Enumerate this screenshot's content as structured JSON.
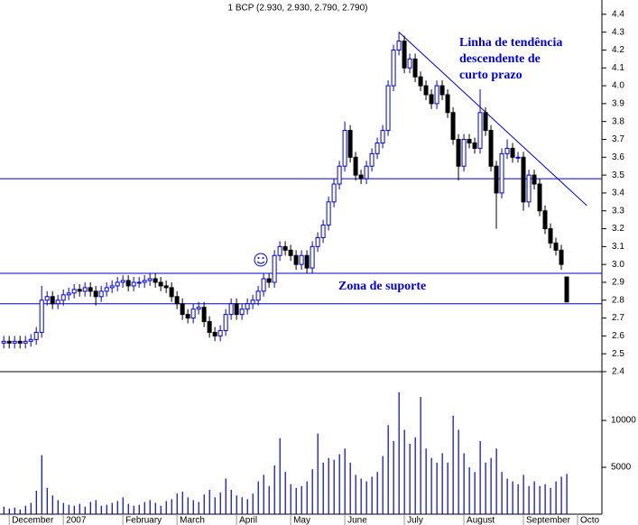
{
  "chart_data": {
    "type": "candlestick",
    "title": "1 BCP (2.930, 2.930, 2.790, 2.790)",
    "annotations": [
      "Linha de tendência",
      "descendente de",
      "curto prazo",
      "Zona de suporte"
    ],
    "categories": [
      null,
      null,
      null,
      null,
      null,
      null,
      null,
      null,
      null,
      null,
      null,
      null,
      null,
      null,
      null,
      null,
      null,
      null,
      null,
      null,
      null,
      null,
      null,
      null,
      null,
      null,
      null,
      null,
      null,
      null,
      null,
      null,
      null,
      null,
      null,
      null,
      null,
      null,
      null,
      null,
      null,
      null,
      null,
      null,
      null,
      null,
      null,
      null,
      null,
      null,
      null,
      null,
      null,
      null,
      null,
      null,
      null,
      null,
      null,
      null,
      null,
      null,
      null,
      null,
      null,
      null,
      null,
      null,
      null,
      null,
      null,
      null,
      null,
      null,
      null,
      null,
      null,
      null,
      null,
      null,
      null,
      null,
      null,
      null,
      null,
      null,
      null,
      null,
      null,
      null,
      null,
      null,
      null,
      null,
      null,
      null,
      null,
      null,
      null,
      null,
      null,
      null,
      null,
      null,
      null
    ],
    "open": [
      2.56,
      2.57,
      2.56,
      2.57,
      2.56,
      2.57,
      2.58,
      2.62,
      2.8,
      2.82,
      2.78,
      2.8,
      2.83,
      2.84,
      2.86,
      2.85,
      2.87,
      2.85,
      2.82,
      2.85,
      2.87,
      2.88,
      2.9,
      2.91,
      2.88,
      2.9,
      2.9,
      2.91,
      2.92,
      2.9,
      2.88,
      2.87,
      2.82,
      2.78,
      2.72,
      2.7,
      2.75,
      2.76,
      2.68,
      2.62,
      2.6,
      2.63,
      2.72,
      2.78,
      2.72,
      2.75,
      2.78,
      2.8,
      2.85,
      2.92,
      2.9,
      3.05,
      3.1,
      3.08,
      3.05,
      3.0,
      3.05,
      2.98,
      3.1,
      3.15,
      3.22,
      3.35,
      3.45,
      3.55,
      3.75,
      3.6,
      3.5,
      3.48,
      3.55,
      3.62,
      3.68,
      3.75,
      4.0,
      4.2,
      4.25,
      4.1,
      4.15,
      4.05,
      4.0,
      3.95,
      3.9,
      4.0,
      3.95,
      3.85,
      3.7,
      3.55,
      3.7,
      3.68,
      3.65,
      3.85,
      3.75,
      3.55,
      3.4,
      3.62,
      3.65,
      3.6,
      3.6,
      3.35,
      3.5,
      3.45,
      3.3,
      3.2,
      3.12,
      3.08,
      2.93
    ],
    "high": [
      2.6,
      2.6,
      2.6,
      2.6,
      2.6,
      2.61,
      2.65,
      2.88,
      2.85,
      2.85,
      2.83,
      2.86,
      2.87,
      2.89,
      2.89,
      2.9,
      2.9,
      2.88,
      2.88,
      2.9,
      2.91,
      2.93,
      2.94,
      2.94,
      2.93,
      2.93,
      2.94,
      2.95,
      2.95,
      2.93,
      2.91,
      2.9,
      2.85,
      2.81,
      2.75,
      2.78,
      2.79,
      2.79,
      2.71,
      2.65,
      2.66,
      2.75,
      2.81,
      2.81,
      2.78,
      2.81,
      2.83,
      2.88,
      2.95,
      2.95,
      3.08,
      3.13,
      3.13,
      3.11,
      3.08,
      3.08,
      3.08,
      3.13,
      3.18,
      3.25,
      3.38,
      3.48,
      3.58,
      3.8,
      3.78,
      3.63,
      3.53,
      3.58,
      3.65,
      3.71,
      3.78,
      4.03,
      4.23,
      4.3,
      4.28,
      4.18,
      4.18,
      4.08,
      4.03,
      3.98,
      4.03,
      4.03,
      3.98,
      3.88,
      3.73,
      3.73,
      3.73,
      3.71,
      3.98,
      3.88,
      3.78,
      3.58,
      3.65,
      3.7,
      3.68,
      3.63,
      3.63,
      3.53,
      3.53,
      3.48,
      3.33,
      3.23,
      3.15,
      3.11,
      2.93
    ],
    "low": [
      2.53,
      2.53,
      2.53,
      2.53,
      2.53,
      2.54,
      2.55,
      2.59,
      2.77,
      2.75,
      2.75,
      2.77,
      2.8,
      2.81,
      2.82,
      2.82,
      2.82,
      2.77,
      2.79,
      2.82,
      2.84,
      2.85,
      2.87,
      2.85,
      2.85,
      2.87,
      2.87,
      2.88,
      2.87,
      2.85,
      2.84,
      2.79,
      2.75,
      2.69,
      2.67,
      2.67,
      2.72,
      2.65,
      2.59,
      2.57,
      2.57,
      2.6,
      2.69,
      2.69,
      2.69,
      2.72,
      2.75,
      2.77,
      2.82,
      2.87,
      2.87,
      3.02,
      3.05,
      3.02,
      2.97,
      2.97,
      2.95,
      2.95,
      3.07,
      3.12,
      3.19,
      3.32,
      3.42,
      3.52,
      3.57,
      3.47,
      3.45,
      3.45,
      3.52,
      3.59,
      3.65,
      3.72,
      3.97,
      4.17,
      4.07,
      4.07,
      4.02,
      3.97,
      3.92,
      3.87,
      3.87,
      3.92,
      3.82,
      3.67,
      3.47,
      3.52,
      3.65,
      3.62,
      3.62,
      3.72,
      3.52,
      3.2,
      3.37,
      3.59,
      3.57,
      3.57,
      3.3,
      3.32,
      3.42,
      3.27,
      3.17,
      3.09,
      3.05,
      2.97,
      2.79
    ],
    "close": [
      2.57,
      2.56,
      2.57,
      2.56,
      2.57,
      2.58,
      2.62,
      2.8,
      2.82,
      2.78,
      2.8,
      2.83,
      2.84,
      2.86,
      2.85,
      2.87,
      2.85,
      2.82,
      2.85,
      2.87,
      2.88,
      2.9,
      2.91,
      2.88,
      2.9,
      2.9,
      2.91,
      2.92,
      2.9,
      2.88,
      2.87,
      2.82,
      2.78,
      2.72,
      2.7,
      2.75,
      2.76,
      2.68,
      2.62,
      2.6,
      2.63,
      2.72,
      2.78,
      2.72,
      2.75,
      2.78,
      2.8,
      2.85,
      2.92,
      2.9,
      3.05,
      3.1,
      3.08,
      3.05,
      3.0,
      3.05,
      2.98,
      3.1,
      3.15,
      3.22,
      3.35,
      3.45,
      3.55,
      3.75,
      3.6,
      3.5,
      3.48,
      3.55,
      3.62,
      3.68,
      3.75,
      4.0,
      4.2,
      4.25,
      4.1,
      4.15,
      4.05,
      4.0,
      3.95,
      3.9,
      4.0,
      3.95,
      3.85,
      3.7,
      3.55,
      3.7,
      3.68,
      3.65,
      3.85,
      3.75,
      3.55,
      3.4,
      3.62,
      3.65,
      3.6,
      3.6,
      3.35,
      3.5,
      3.45,
      3.3,
      3.2,
      3.12,
      3.08,
      3.0,
      2.79
    ],
    "volume": [
      800,
      600,
      700,
      500,
      900,
      1200,
      2500,
      6300,
      2800,
      2000,
      1500,
      1200,
      1000,
      900,
      1100,
      800,
      1300,
      1500,
      900,
      1000,
      1200,
      1400,
      1800,
      1100,
      900,
      1000,
      1300,
      1500,
      1200,
      900,
      1400,
      1600,
      2200,
      2400,
      1800,
      1500,
      1300,
      2100,
      2600,
      1800,
      2300,
      3800,
      2600,
      2000,
      1800,
      1600,
      2200,
      3500,
      4200,
      3000,
      5200,
      8100,
      4500,
      3200,
      2800,
      3000,
      3500,
      4800,
      8600,
      5500,
      6000,
      5800,
      6400,
      7000,
      5500,
      4200,
      3800,
      3500,
      4000,
      4500,
      6200,
      9500,
      7800,
      13000,
      9000,
      7500,
      8200,
      12500,
      7000,
      6000,
      5500,
      6500,
      5500,
      10500,
      9000,
      6500,
      5000,
      4500,
      7800,
      5500,
      6000,
      7000,
      4500,
      3800,
      3500,
      3200,
      4200,
      3000,
      3500,
      3000,
      3200,
      2800,
      3500,
      4000,
      4300
    ],
    "up_color": "#0000cc",
    "down_color": "#000000",
    "volume_color": "#0000cc",
    "line_color": "#0000cc",
    "ylim": [
      2.4,
      4.48
    ],
    "yticks": [
      2.4,
      2.5,
      2.6,
      2.7,
      2.8,
      2.9,
      {
        "value": 3,
        "label": "3.0"
      },
      3.1,
      3.2,
      3.3,
      3.4,
      3.5,
      3.6,
      3.7,
      3.8,
      3.9,
      {
        "value": 4,
        "label": "4.0"
      },
      4.1,
      4.2,
      4.3,
      4.4
    ],
    "y2lim": [
      0,
      15200
    ],
    "y2ticks": [
      5000,
      10000
    ],
    "xlim": [
      -0.7,
      110.5
    ],
    "xticks": [
      {
        "value": 1,
        "label": "December"
      },
      {
        "value": 11,
        "label": "2007"
      },
      {
        "value": 22,
        "label": "February"
      },
      {
        "value": 32,
        "label": "March"
      },
      {
        "value": 43,
        "label": "April"
      },
      {
        "value": 53,
        "label": "May"
      },
      {
        "value": 63,
        "label": "June"
      },
      {
        "value": 74,
        "label": "July"
      },
      {
        "value": 85,
        "label": "August"
      },
      {
        "value": 96,
        "label": "September"
      },
      {
        "value": 106,
        "label": "Octo"
      }
    ],
    "hlines": [
      3.48,
      2.95,
      2.78
    ],
    "trendline": {
      "x": [
        73,
        107.7
      ],
      "y": [
        4.3,
        3.33
      ]
    }
  }
}
